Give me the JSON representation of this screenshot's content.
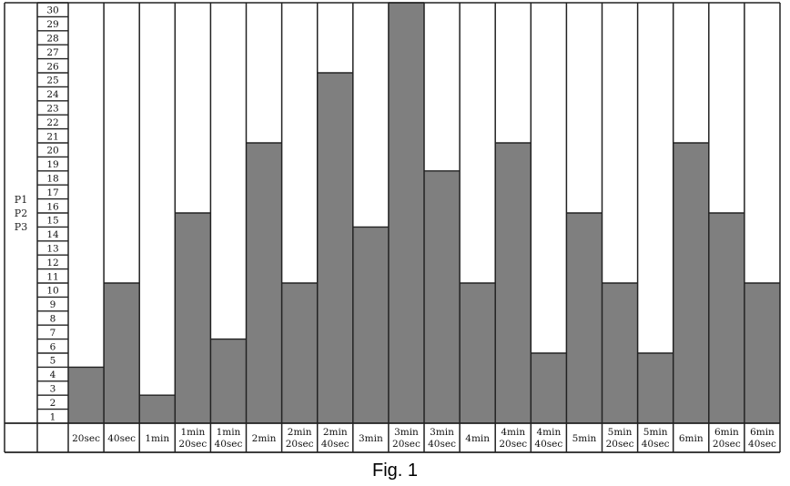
{
  "chart_data": {
    "type": "bar",
    "title": "",
    "caption": "Fig. 1",
    "series_labels": [
      "P1",
      "P2",
      "P3"
    ],
    "yticks": [
      1,
      2,
      3,
      4,
      5,
      6,
      7,
      8,
      9,
      10,
      11,
      12,
      13,
      14,
      15,
      16,
      17,
      18,
      19,
      20,
      21,
      22,
      23,
      24,
      25,
      26,
      27,
      28,
      29,
      30
    ],
    "ylim": [
      0,
      30
    ],
    "categories": [
      [
        "20sec"
      ],
      [
        "40sec"
      ],
      [
        "1min"
      ],
      [
        "1min",
        "20sec"
      ],
      [
        "1min",
        "40sec"
      ],
      [
        "2min"
      ],
      [
        "2min",
        "20sec"
      ],
      [
        "2min",
        "40sec"
      ],
      [
        "3min"
      ],
      [
        "3min",
        "20sec"
      ],
      [
        "3min",
        "40sec"
      ],
      [
        "4min"
      ],
      [
        "4min",
        "20sec"
      ],
      [
        "4min",
        "40sec"
      ],
      [
        "5min"
      ],
      [
        "5min",
        "20sec"
      ],
      [
        "5min",
        "40sec"
      ],
      [
        "6min"
      ],
      [
        "6min",
        "20sec"
      ],
      [
        "6min",
        "40sec"
      ]
    ],
    "values": [
      4,
      10,
      2,
      15,
      6,
      20,
      10,
      25,
      14,
      30,
      18,
      10,
      20,
      5,
      15,
      10,
      5,
      20,
      15,
      10
    ],
    "colors": {
      "bar": "#7f7f7f",
      "empty": "#ffffff",
      "grid": "#222222"
    }
  }
}
